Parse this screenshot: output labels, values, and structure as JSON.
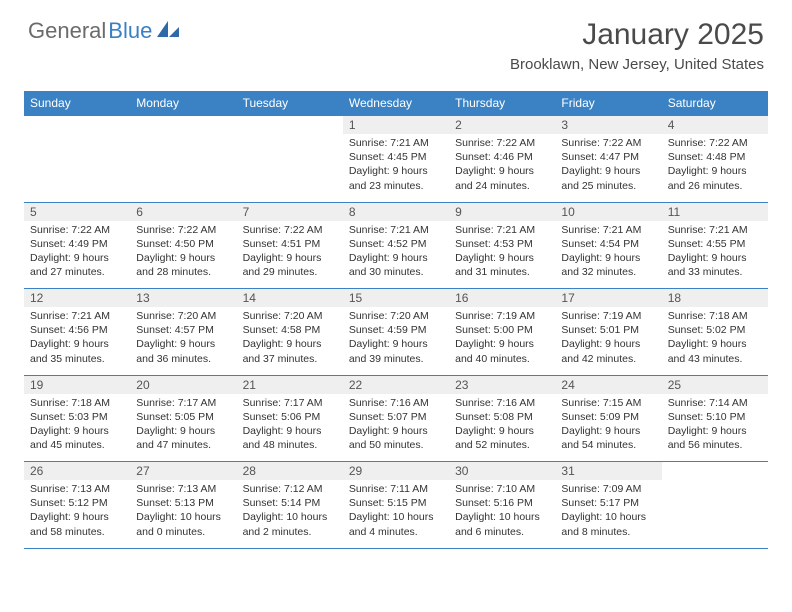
{
  "logo": {
    "text_gray": "General",
    "text_blue": "Blue"
  },
  "header": {
    "month_title": "January 2025",
    "location": "Brooklawn, New Jersey, United States"
  },
  "colors": {
    "header_bg": "#3b82c4",
    "header_text": "#ffffff",
    "daynum_bg": "#efefef",
    "border": "#3b82c4",
    "logo_gray": "#6b6b6b",
    "logo_blue": "#3b7fc4"
  },
  "days_of_week": [
    "Sunday",
    "Monday",
    "Tuesday",
    "Wednesday",
    "Thursday",
    "Friday",
    "Saturday"
  ],
  "weeks": [
    [
      null,
      null,
      null,
      {
        "n": "1",
        "sr": "7:21 AM",
        "ss": "4:45 PM",
        "dl": "9 hours and 23 minutes."
      },
      {
        "n": "2",
        "sr": "7:22 AM",
        "ss": "4:46 PM",
        "dl": "9 hours and 24 minutes."
      },
      {
        "n": "3",
        "sr": "7:22 AM",
        "ss": "4:47 PM",
        "dl": "9 hours and 25 minutes."
      },
      {
        "n": "4",
        "sr": "7:22 AM",
        "ss": "4:48 PM",
        "dl": "9 hours and 26 minutes."
      }
    ],
    [
      {
        "n": "5",
        "sr": "7:22 AM",
        "ss": "4:49 PM",
        "dl": "9 hours and 27 minutes."
      },
      {
        "n": "6",
        "sr": "7:22 AM",
        "ss": "4:50 PM",
        "dl": "9 hours and 28 minutes."
      },
      {
        "n": "7",
        "sr": "7:22 AM",
        "ss": "4:51 PM",
        "dl": "9 hours and 29 minutes."
      },
      {
        "n": "8",
        "sr": "7:21 AM",
        "ss": "4:52 PM",
        "dl": "9 hours and 30 minutes."
      },
      {
        "n": "9",
        "sr": "7:21 AM",
        "ss": "4:53 PM",
        "dl": "9 hours and 31 minutes."
      },
      {
        "n": "10",
        "sr": "7:21 AM",
        "ss": "4:54 PM",
        "dl": "9 hours and 32 minutes."
      },
      {
        "n": "11",
        "sr": "7:21 AM",
        "ss": "4:55 PM",
        "dl": "9 hours and 33 minutes."
      }
    ],
    [
      {
        "n": "12",
        "sr": "7:21 AM",
        "ss": "4:56 PM",
        "dl": "9 hours and 35 minutes."
      },
      {
        "n": "13",
        "sr": "7:20 AM",
        "ss": "4:57 PM",
        "dl": "9 hours and 36 minutes."
      },
      {
        "n": "14",
        "sr": "7:20 AM",
        "ss": "4:58 PM",
        "dl": "9 hours and 37 minutes."
      },
      {
        "n": "15",
        "sr": "7:20 AM",
        "ss": "4:59 PM",
        "dl": "9 hours and 39 minutes."
      },
      {
        "n": "16",
        "sr": "7:19 AM",
        "ss": "5:00 PM",
        "dl": "9 hours and 40 minutes."
      },
      {
        "n": "17",
        "sr": "7:19 AM",
        "ss": "5:01 PM",
        "dl": "9 hours and 42 minutes."
      },
      {
        "n": "18",
        "sr": "7:18 AM",
        "ss": "5:02 PM",
        "dl": "9 hours and 43 minutes."
      }
    ],
    [
      {
        "n": "19",
        "sr": "7:18 AM",
        "ss": "5:03 PM",
        "dl": "9 hours and 45 minutes."
      },
      {
        "n": "20",
        "sr": "7:17 AM",
        "ss": "5:05 PM",
        "dl": "9 hours and 47 minutes."
      },
      {
        "n": "21",
        "sr": "7:17 AM",
        "ss": "5:06 PM",
        "dl": "9 hours and 48 minutes."
      },
      {
        "n": "22",
        "sr": "7:16 AM",
        "ss": "5:07 PM",
        "dl": "9 hours and 50 minutes."
      },
      {
        "n": "23",
        "sr": "7:16 AM",
        "ss": "5:08 PM",
        "dl": "9 hours and 52 minutes."
      },
      {
        "n": "24",
        "sr": "7:15 AM",
        "ss": "5:09 PM",
        "dl": "9 hours and 54 minutes."
      },
      {
        "n": "25",
        "sr": "7:14 AM",
        "ss": "5:10 PM",
        "dl": "9 hours and 56 minutes."
      }
    ],
    [
      {
        "n": "26",
        "sr": "7:13 AM",
        "ss": "5:12 PM",
        "dl": "9 hours and 58 minutes."
      },
      {
        "n": "27",
        "sr": "7:13 AM",
        "ss": "5:13 PM",
        "dl": "10 hours and 0 minutes."
      },
      {
        "n": "28",
        "sr": "7:12 AM",
        "ss": "5:14 PM",
        "dl": "10 hours and 2 minutes."
      },
      {
        "n": "29",
        "sr": "7:11 AM",
        "ss": "5:15 PM",
        "dl": "10 hours and 4 minutes."
      },
      {
        "n": "30",
        "sr": "7:10 AM",
        "ss": "5:16 PM",
        "dl": "10 hours and 6 minutes."
      },
      {
        "n": "31",
        "sr": "7:09 AM",
        "ss": "5:17 PM",
        "dl": "10 hours and 8 minutes."
      },
      null
    ]
  ],
  "labels": {
    "sunrise": "Sunrise:",
    "sunset": "Sunset:",
    "daylight": "Daylight:"
  }
}
